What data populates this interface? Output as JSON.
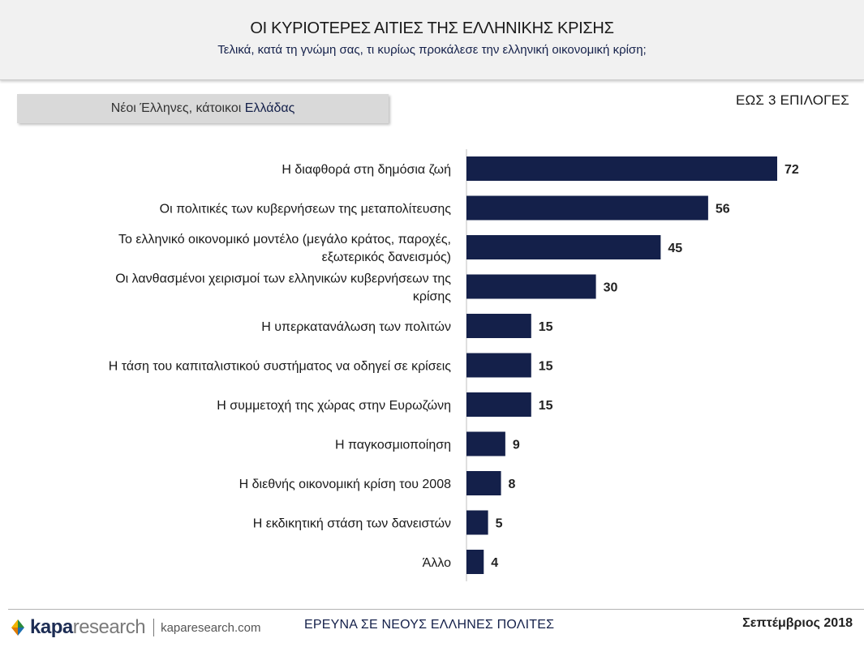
{
  "header": {
    "title": "ΟΙ ΚΥΡΙΟΤΕΡΕΣ ΑΙΤΙΕΣ ΤΗΣ ΕΛΛΗΝΙΚΗΣ ΚΡΙΣΗΣ",
    "subtitle": "Τελικά, κατά τη γνώμη σας, τι κυρίως προκάλεσε την ελληνική οικονομική κρίση;"
  },
  "population": {
    "prefix": "Νέοι Έλληνες, κάτοικοι ",
    "highlight": "Ελλάδας"
  },
  "selection_note": "ΕΩΣ 3 ΕΠΙΛΟΓΕΣ",
  "footer": {
    "logo_kapa": "kapa",
    "logo_research": "research",
    "logo_url": "kaparesearch.com",
    "survey": "ΕΡΕΥΝΑ ΣΕ ΝΕΟΥΣ ΕΛΛΗΝΕΣ ΠΟΛΙΤΕΣ",
    "date": "Σεπτέμβριος 2018"
  },
  "colors": {
    "bar": "#14204a",
    "accent": "#14204a"
  },
  "chart_data": {
    "type": "bar",
    "orientation": "horizontal",
    "categories": [
      [
        "Η διαφθορά στη δημόσια ζωή"
      ],
      [
        "Οι πολιτικές των κυβερνήσεων της μεταπολίτευσης"
      ],
      [
        "Το ελληνικό οικονομικό μοντέλο (μεγάλο κράτος, παροχές,",
        "εξωτερικός δανεισμός)"
      ],
      [
        "Οι λανθασμένοι χειρισμοί των ελληνικών κυβερνήσεων της",
        "κρίσης"
      ],
      [
        "Η υπερκατανάλωση των πολιτών"
      ],
      [
        "Η τάση του καπιταλιστικού συστήματος να οδηγεί σε κρίσεις"
      ],
      [
        "Η συμμετοχή της χώρας στην Ευρωζώνη"
      ],
      [
        "Η παγκοσμιοποίηση"
      ],
      [
        "Η διεθνής οικονομική κρίση του 2008"
      ],
      [
        "Η εκδικητική στάση των δανειστών"
      ],
      [
        "Άλλο"
      ]
    ],
    "values": [
      72,
      56,
      45,
      30,
      15,
      15,
      15,
      9,
      8,
      5,
      4
    ],
    "data_labels": true,
    "grid": false,
    "xlim": [
      0,
      100
    ]
  }
}
